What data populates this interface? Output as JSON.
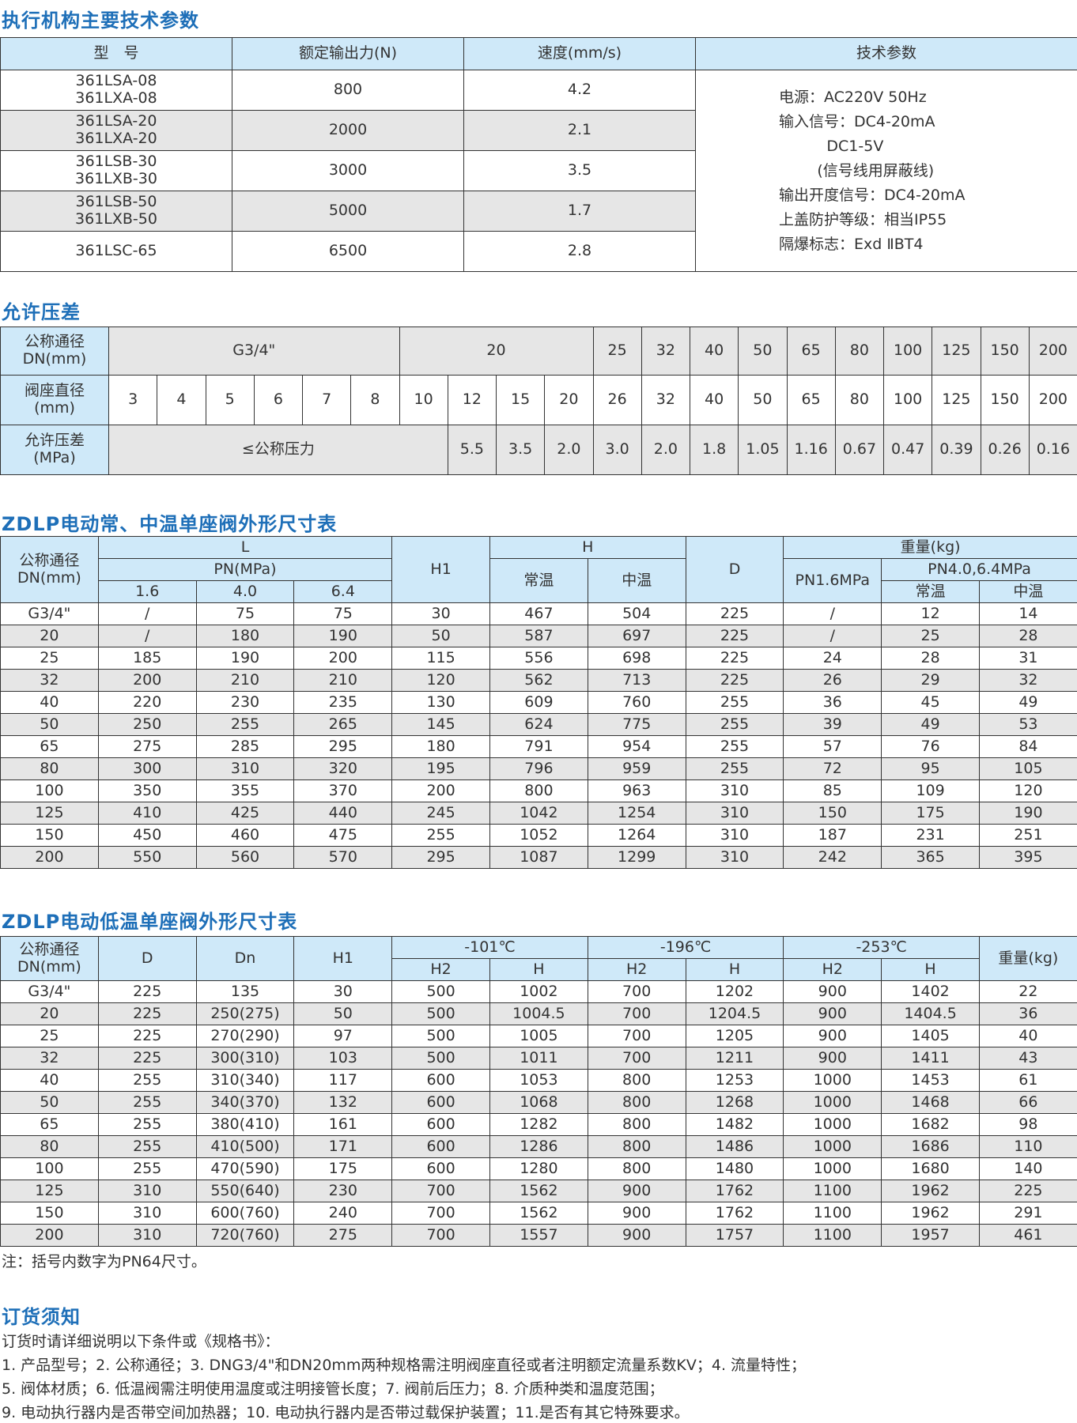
{
  "section1": {
    "title": "执行机构主要技术参数",
    "headers": [
      "型　号",
      "额定输出力(N)",
      "速度(mm/s)",
      "技术参数"
    ],
    "rows": [
      {
        "model": [
          "361LSA-08",
          "361LXA-08"
        ],
        "force": "800",
        "speed": "4.2"
      },
      {
        "model": [
          "361LSA-20",
          "361LXA-20"
        ],
        "force": "2000",
        "speed": "2.1"
      },
      {
        "model": [
          "361LSB-30",
          "361LXB-30"
        ],
        "force": "3000",
        "speed": "3.5"
      },
      {
        "model": [
          "361LSB-50",
          "361LXB-50"
        ],
        "force": "5000",
        "speed": "1.7"
      },
      {
        "model": [
          "361LSC-65"
        ],
        "force": "6500",
        "speed": "2.8"
      }
    ],
    "tech_params": [
      "电源：AC220V 50Hz",
      "输入信号：DC4-20mA",
      "          DC1-5V",
      "        (信号线用屏蔽线)",
      "输出开度信号：DC4-20mA",
      "上盖防护等级：相当IP55",
      "隔爆标志：Exd ⅡBT4"
    ]
  },
  "section2": {
    "title": "允许压差",
    "row_labels": [
      [
        "公称通径",
        "DN(mm)"
      ],
      [
        "阀座直径",
        "(mm)"
      ],
      [
        "允许压差",
        "(MPa)"
      ]
    ],
    "nominal": [
      {
        "v": "G3/4\"",
        "span": 6
      },
      {
        "v": "20",
        "span": 4
      },
      {
        "v": "25",
        "span": 1
      },
      {
        "v": "32",
        "span": 1
      },
      {
        "v": "40",
        "span": 1
      },
      {
        "v": "50",
        "span": 1
      },
      {
        "v": "65",
        "span": 1
      },
      {
        "v": "80",
        "span": 1
      },
      {
        "v": "100",
        "span": 1
      },
      {
        "v": "125",
        "span": 1
      },
      {
        "v": "150",
        "span": 1
      },
      {
        "v": "200",
        "span": 1
      }
    ],
    "seat": [
      "3",
      "4",
      "5",
      "6",
      "7",
      "8",
      "10",
      "12",
      "15",
      "20",
      "26",
      "32",
      "40",
      "50",
      "65",
      "80",
      "100",
      "125",
      "150",
      "200"
    ],
    "pressure": [
      {
        "v": "≤公称压力",
        "span": 7
      },
      {
        "v": "5.5",
        "span": 1
      },
      {
        "v": "3.5",
        "span": 1
      },
      {
        "v": "2.0",
        "span": 1
      },
      {
        "v": "3.0",
        "span": 1
      },
      {
        "v": "2.0",
        "span": 1
      },
      {
        "v": "1.8",
        "span": 1
      },
      {
        "v": "1.05",
        "span": 1
      },
      {
        "v": "1.16",
        "span": 1
      },
      {
        "v": "0.67",
        "span": 1
      },
      {
        "v": "0.47",
        "span": 1
      },
      {
        "v": "0.39",
        "span": 1
      },
      {
        "v": "0.26",
        "span": 1
      },
      {
        "v": "0.16",
        "span": 1
      }
    ]
  },
  "section3": {
    "title": "ZDLP电动常、中温单座阀外形尺寸表",
    "headers": {
      "dn": "公称通径\nDN(mm)",
      "L": "L",
      "pn": "PN(MPa)",
      "pn_vals": [
        "1.6",
        "4.0",
        "6.4"
      ],
      "H1": "H1",
      "H": "H",
      "H_sub": [
        "常温",
        "中温"
      ],
      "D": "D",
      "weight": "重量(kg)",
      "pn16": "PN1.6MPa",
      "pn4064": "PN4.0,6.4MPa",
      "w_sub": [
        "常温",
        "中温"
      ]
    },
    "rows": [
      [
        "G3/4\"",
        "/",
        "75",
        "75",
        "30",
        "467",
        "504",
        "225",
        "/",
        "12",
        "14"
      ],
      [
        "20",
        "/",
        "180",
        "190",
        "50",
        "587",
        "697",
        "225",
        "/",
        "25",
        "28"
      ],
      [
        "25",
        "185",
        "190",
        "200",
        "115",
        "556",
        "698",
        "225",
        "24",
        "28",
        "31"
      ],
      [
        "32",
        "200",
        "210",
        "210",
        "120",
        "562",
        "713",
        "225",
        "26",
        "29",
        "32"
      ],
      [
        "40",
        "220",
        "230",
        "235",
        "130",
        "609",
        "760",
        "255",
        "36",
        "45",
        "49"
      ],
      [
        "50",
        "250",
        "255",
        "265",
        "145",
        "624",
        "775",
        "255",
        "39",
        "49",
        "53"
      ],
      [
        "65",
        "275",
        "285",
        "295",
        "180",
        "791",
        "954",
        "255",
        "57",
        "76",
        "84"
      ],
      [
        "80",
        "300",
        "310",
        "320",
        "195",
        "796",
        "959",
        "255",
        "72",
        "95",
        "105"
      ],
      [
        "100",
        "350",
        "355",
        "370",
        "200",
        "800",
        "963",
        "310",
        "85",
        "109",
        "120"
      ],
      [
        "125",
        "410",
        "425",
        "440",
        "245",
        "1042",
        "1254",
        "310",
        "150",
        "175",
        "190"
      ],
      [
        "150",
        "450",
        "460",
        "475",
        "255",
        "1052",
        "1264",
        "310",
        "187",
        "231",
        "251"
      ],
      [
        "200",
        "550",
        "560",
        "570",
        "295",
        "1087",
        "1299",
        "310",
        "242",
        "365",
        "395"
      ]
    ]
  },
  "section4": {
    "title": "ZDLP电动低温单座阀外形尺寸表",
    "headers": {
      "dn": "公称通径\nDN(mm)",
      "D": "D",
      "Dn": "Dn",
      "H1": "H1",
      "temps": [
        "-101℃",
        "-196℃",
        "-253℃"
      ],
      "sub": [
        "H2",
        "H"
      ],
      "weight": "重量(kg)"
    },
    "rows": [
      [
        "G3/4\"",
        "225",
        "135",
        "30",
        "500",
        "1002",
        "700",
        "1202",
        "900",
        "1402",
        "22"
      ],
      [
        "20",
        "225",
        "250(275)",
        "50",
        "500",
        "1004.5",
        "700",
        "1204.5",
        "900",
        "1404.5",
        "36"
      ],
      [
        "25",
        "225",
        "270(290)",
        "97",
        "500",
        "1005",
        "700",
        "1205",
        "900",
        "1405",
        "40"
      ],
      [
        "32",
        "225",
        "300(310)",
        "103",
        "500",
        "1011",
        "700",
        "1211",
        "900",
        "1411",
        "43"
      ],
      [
        "40",
        "255",
        "310(340)",
        "117",
        "600",
        "1053",
        "800",
        "1253",
        "1000",
        "1453",
        "61"
      ],
      [
        "50",
        "255",
        "340(370)",
        "132",
        "600",
        "1068",
        "800",
        "1268",
        "1000",
        "1468",
        "66"
      ],
      [
        "65",
        "255",
        "380(410)",
        "161",
        "600",
        "1282",
        "800",
        "1482",
        "1000",
        "1682",
        "98"
      ],
      [
        "80",
        "255",
        "410(500)",
        "171",
        "600",
        "1286",
        "800",
        "1486",
        "1000",
        "1686",
        "110"
      ],
      [
        "100",
        "255",
        "470(590)",
        "175",
        "600",
        "1280",
        "800",
        "1480",
        "1000",
        "1680",
        "140"
      ],
      [
        "125",
        "310",
        "550(640)",
        "230",
        "700",
        "1562",
        "900",
        "1762",
        "1100",
        "1962",
        "225"
      ],
      [
        "150",
        "310",
        "600(760)",
        "240",
        "700",
        "1562",
        "900",
        "1762",
        "1100",
        "1962",
        "291"
      ],
      [
        "200",
        "310",
        "720(760)",
        "275",
        "700",
        "1557",
        "900",
        "1757",
        "1100",
        "1957",
        "461"
      ]
    ],
    "note": "注：括号内数字为PN64尺寸。"
  },
  "ordering": {
    "title": "订货须知",
    "lines": [
      "订货时请详细说明以下条件或《规格书》：",
      "1. 产品型号；2. 公称通径；3. DNG3/4\"和DN20mm两种规格需注明阀座直径或者注明额定流量系数KV；4. 流量特性；",
      "5. 阀体材质；6. 低温阀需注明使用温度或注明接管长度；7. 阀前后压力；8. 介质种类和温度范围；",
      "9. 电动执行器内是否带空间加热器；10. 电动执行器内是否带过载保护装置；11.是否有其它特殊要求。"
    ]
  },
  "colors": {
    "title": "#1e6fb8",
    "header_bg": "#cfe9f9",
    "alt_row": "#e6e6e6",
    "border": "#333333"
  }
}
